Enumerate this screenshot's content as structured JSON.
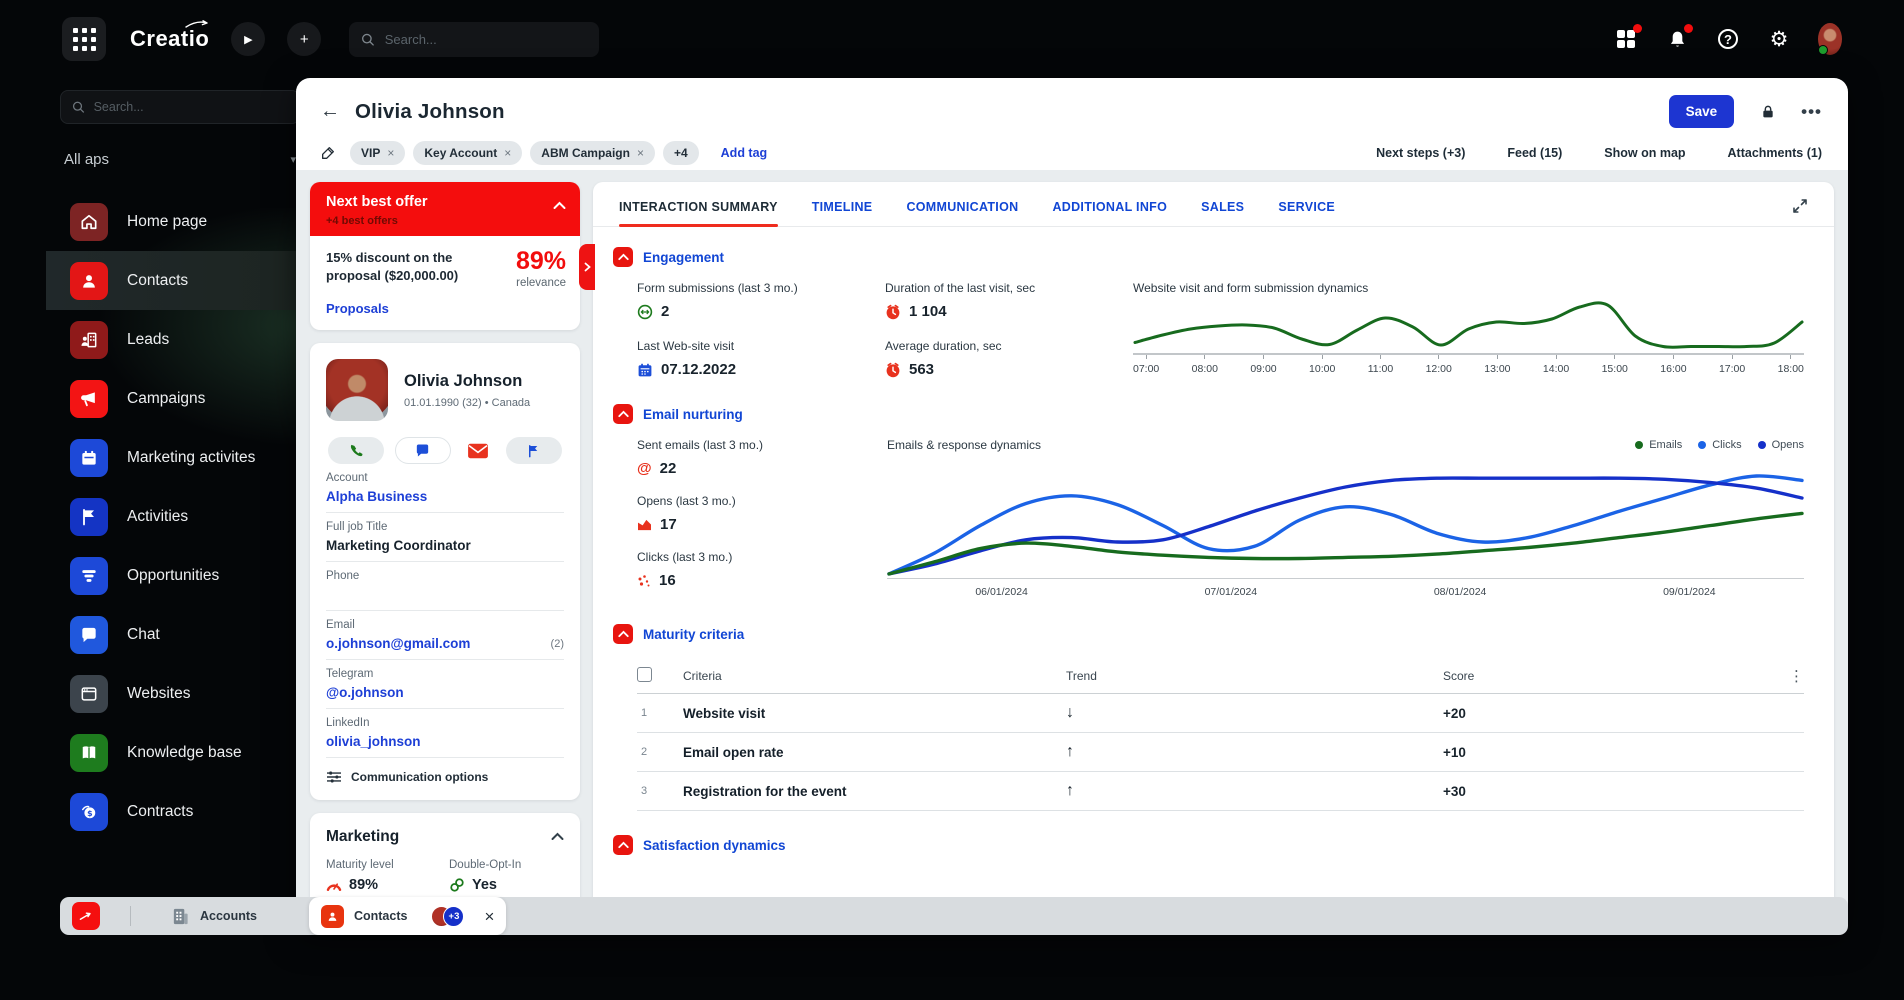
{
  "brand": {
    "logo": "Creatio"
  },
  "topbar": {
    "search_placeholder": "Search..."
  },
  "sidebar": {
    "search_placeholder": "Search...",
    "workspace": "All aps",
    "items": [
      {
        "label": "Home page",
        "icon": "home-icon",
        "color": "#7d2424"
      },
      {
        "label": "Contacts",
        "icon": "contacts-icon",
        "color": "#e31616",
        "active": true
      },
      {
        "label": "Leads",
        "icon": "leads-icon",
        "color": "#8f1a1a"
      },
      {
        "label": "Campaigns",
        "icon": "megaphone-icon",
        "color": "#f31414"
      },
      {
        "label": "Marketing activites",
        "icon": "calendar-icon",
        "color": "#1d49d8"
      },
      {
        "label": "Activities",
        "icon": "flag-icon",
        "color": "#1434c4"
      },
      {
        "label": "Opportunities",
        "icon": "funnel-icon",
        "color": "#1d49d8"
      },
      {
        "label": "Chat",
        "icon": "chat-icon",
        "color": "#2058dd"
      },
      {
        "label": "Websites",
        "icon": "browser-icon",
        "color": "#3c444c"
      },
      {
        "label": "Knowledge base",
        "icon": "book-icon",
        "color": "#1e7c1e"
      },
      {
        "label": "Contracts",
        "icon": "contract-icon",
        "color": "#1d49d8"
      }
    ]
  },
  "header": {
    "title": "Olivia Johnson",
    "tags": [
      "VIP",
      "Key Account",
      "ABM Campaign"
    ],
    "tags_more": "+4",
    "add_tag": "Add tag",
    "links": [
      "Next steps (+3)",
      "Feed (15)",
      "Show on map",
      "Attachments (1)"
    ],
    "save": "Save"
  },
  "offer": {
    "title": "Next best offer",
    "subtitle": "+4 best offers",
    "text": "15% discount on the proposal ($20,000.00)",
    "relevance": "89%",
    "relevance_label": "relevance",
    "link": "Proposals"
  },
  "profile": {
    "name": "Olivia Johnson",
    "meta": "01.01.1990 (32) • Canada",
    "fields": [
      {
        "label": "Account",
        "value": "Alpha Business"
      },
      {
        "label": "Full job Title",
        "value": "Marketing Coordinator"
      },
      {
        "label": "Phone",
        "value": ""
      },
      {
        "label": "Email",
        "value": "o.johnson@gmail.com",
        "extra": "(2)"
      },
      {
        "label": "Telegram",
        "value": "@o.johnson"
      },
      {
        "label": "LinkedIn",
        "value": "olivia_johnson"
      }
    ],
    "comm_options": "Communication options"
  },
  "marketing_card": {
    "title": "Marketing",
    "maturity_label": "Maturity level",
    "maturity_value": "89%",
    "opt_label": "Double-Opt-In",
    "opt_value": "Yes"
  },
  "tabs": [
    "INTERACTION SUMMARY",
    "TIMELINE",
    "COMMUNICATION",
    "ADDITIONAL INFO",
    "SALES",
    "SERVICE"
  ],
  "engagement": {
    "title": "Engagement",
    "metrics": [
      {
        "label": "Form submissions (last 3 mo.)",
        "value": "2",
        "icon": "form-submission-icon"
      },
      {
        "label": "Duration of the last visit, sec",
        "value": "1 104",
        "icon": "clock-icon"
      },
      {
        "label": "Last Web-site visit",
        "value": "07.12.2022",
        "icon": "calendar-icon"
      },
      {
        "label": "Average duration, sec",
        "value": "563",
        "icon": "clock-icon"
      }
    ]
  },
  "email_nurturing": {
    "title": "Email nurturing",
    "metrics": [
      {
        "label": "Sent emails (last 3 mo.)",
        "value": "22",
        "icon": "at-icon"
      },
      {
        "label": "Opens (last 3 mo.)",
        "value": "17",
        "icon": "open-email-icon"
      },
      {
        "label": "Clicks (last 3 mo.)",
        "value": "16",
        "icon": "clicks-icon"
      }
    ]
  },
  "maturity": {
    "title": "Maturity criteria",
    "columns": [
      "Criteria",
      "Trend",
      "Score"
    ],
    "rows": [
      {
        "num": "1",
        "criteria": "Website visit",
        "trend": "↓",
        "score": "+20"
      },
      {
        "num": "2",
        "criteria": "Email open rate",
        "trend": "↑",
        "score": "+10"
      },
      {
        "num": "3",
        "criteria": "Registration for the event",
        "trend": "↑",
        "score": "+30"
      }
    ]
  },
  "satisfaction": {
    "title": "Satisfaction dynamics"
  },
  "taskbar": {
    "tabs": [
      {
        "label": "Accounts"
      },
      {
        "label": "Contacts",
        "badge": "+3",
        "active": true
      }
    ]
  },
  "colors": {
    "accent_red": "#f20d0d",
    "accent_blue": "#1d35d1",
    "link_blue": "#1146d4",
    "chart_green": "#176b1e",
    "chart_blue_bright": "#1b63e6",
    "chart_blue_dark": "#1530c9"
  },
  "chart_data": [
    {
      "type": "line",
      "title": "Website visit and form submission dynamics",
      "x_ticks": [
        "07:00",
        "08:00",
        "09:00",
        "10:00",
        "11:00",
        "12:00",
        "13:00",
        "14:00",
        "15:00",
        "16:00",
        "17:00",
        "18:00"
      ],
      "ylim": [
        0,
        100
      ],
      "grid": false,
      "series": [
        {
          "name": "Visits",
          "color": "#176b1e",
          "values": [
            15,
            30,
            42,
            48,
            50,
            44,
            22,
            11,
            40,
            64,
            46,
            10,
            42,
            56,
            53,
            62,
            86,
            90,
            28,
            7,
            7,
            7,
            7,
            14,
            56
          ]
        }
      ]
    },
    {
      "type": "line",
      "title": "Emails & response dynamics",
      "x_ticks": [
        "06/01/2024",
        "07/01/2024",
        "08/01/2024",
        "09/01/2024"
      ],
      "ylim": [
        0,
        100
      ],
      "grid": false,
      "legend_position": "top-right",
      "legend": [
        {
          "name": "Emails",
          "color": "#176b1e"
        },
        {
          "name": "Clicks",
          "color": "#1b63e6"
        },
        {
          "name": "Opens",
          "color": "#1530c9"
        }
      ],
      "series": [
        {
          "name": "Clicks",
          "color": "#1b63e6",
          "values": [
            1,
            20,
            45,
            65,
            72,
            64,
            45,
            24,
            26,
            50,
            62,
            55,
            38,
            30,
            34,
            45,
            58,
            70,
            82,
            90,
            86
          ]
        },
        {
          "name": "Opens",
          "color": "#1530c9",
          "values": [
            1,
            10,
            22,
            32,
            34,
            30,
            32,
            44,
            58,
            70,
            80,
            86,
            88,
            88,
            88,
            88,
            88,
            87,
            84,
            79,
            70
          ]
        },
        {
          "name": "Emails",
          "color": "#176b1e",
          "values": [
            1,
            12,
            24,
            29,
            26,
            21,
            18,
            16,
            15,
            15,
            16,
            17,
            19,
            22,
            25,
            29,
            34,
            39,
            45,
            51,
            56
          ]
        }
      ]
    }
  ]
}
